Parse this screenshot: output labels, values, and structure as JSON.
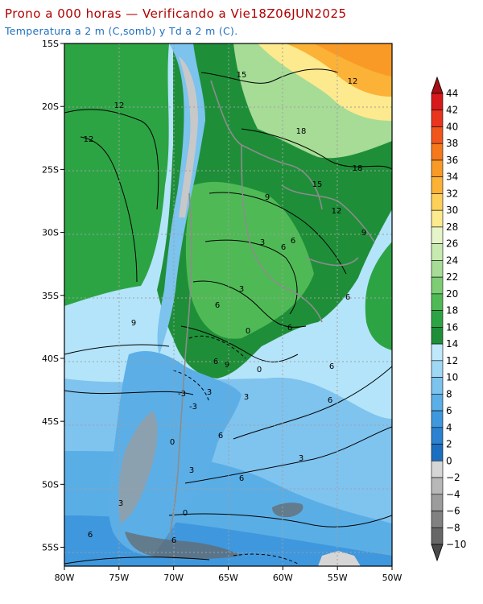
{
  "header": {
    "title": "Prono a 000 horas — Verificando a Vie18Z06JUN2025",
    "subtitle": "Temperatura a 2 m (C,somb) y Td a 2 m (C).",
    "title_color": "#b00000",
    "subtitle_color": "#1f6fbf"
  },
  "map": {
    "projection": "lat-lon",
    "lon_range": [
      -80,
      -50
    ],
    "lat_range": [
      -56.5,
      -15
    ],
    "x_ticks": [
      "80W",
      "75W",
      "70W",
      "65W",
      "60W",
      "55W",
      "50W"
    ],
    "y_ticks": [
      "15S",
      "20S",
      "25S",
      "30S",
      "35S",
      "40S",
      "45S",
      "50S",
      "55S"
    ],
    "grid": "dotted",
    "colors": {
      "ocean_north": "#b4e4fa",
      "ocean_south": "#6cb4ea",
      "andes_high": "#c8c8c8",
      "borders": "#8c8c8c"
    },
    "contour_labels": [
      "15",
      "12",
      "12",
      "12",
      "18",
      "18",
      "15",
      "12",
      "9",
      "9",
      "6",
      "6",
      "3",
      "3",
      "6",
      "6",
      "0",
      "6",
      "9",
      "9",
      "6",
      "3",
      "0",
      "6",
      "-3",
      "3",
      "-3",
      "6",
      "3",
      "6",
      "0",
      "6",
      "3",
      "6",
      "6",
      "3",
      "0"
    ]
  },
  "colorbar": {
    "levels": [
      "44",
      "42",
      "40",
      "38",
      "36",
      "34",
      "32",
      "30",
      "28",
      "26",
      "24",
      "22",
      "20",
      "18",
      "16",
      "14",
      "12",
      "10",
      "8",
      "6",
      "4",
      "2",
      "0",
      "−2",
      "−4",
      "−6",
      "−8",
      "−10"
    ],
    "colors": [
      "#a50f15",
      "#d7191c",
      "#e9341e",
      "#f0561c",
      "#f5781c",
      "#f99a27",
      "#fbb236",
      "#fdd05a",
      "#fde98e",
      "#e6f5c9",
      "#c7eab1",
      "#a6dc96",
      "#7ccd74",
      "#4fba55",
      "#2da444",
      "#1e8f38",
      "#bfe8fb",
      "#9fd8f4",
      "#7cc3ee",
      "#5caee6",
      "#3f98dd",
      "#2a82d0",
      "#1a6fc0",
      "#d6d6d6",
      "#b8b8b8",
      "#9c9c9c",
      "#818181",
      "#676767",
      "#4a4a4a"
    ]
  }
}
